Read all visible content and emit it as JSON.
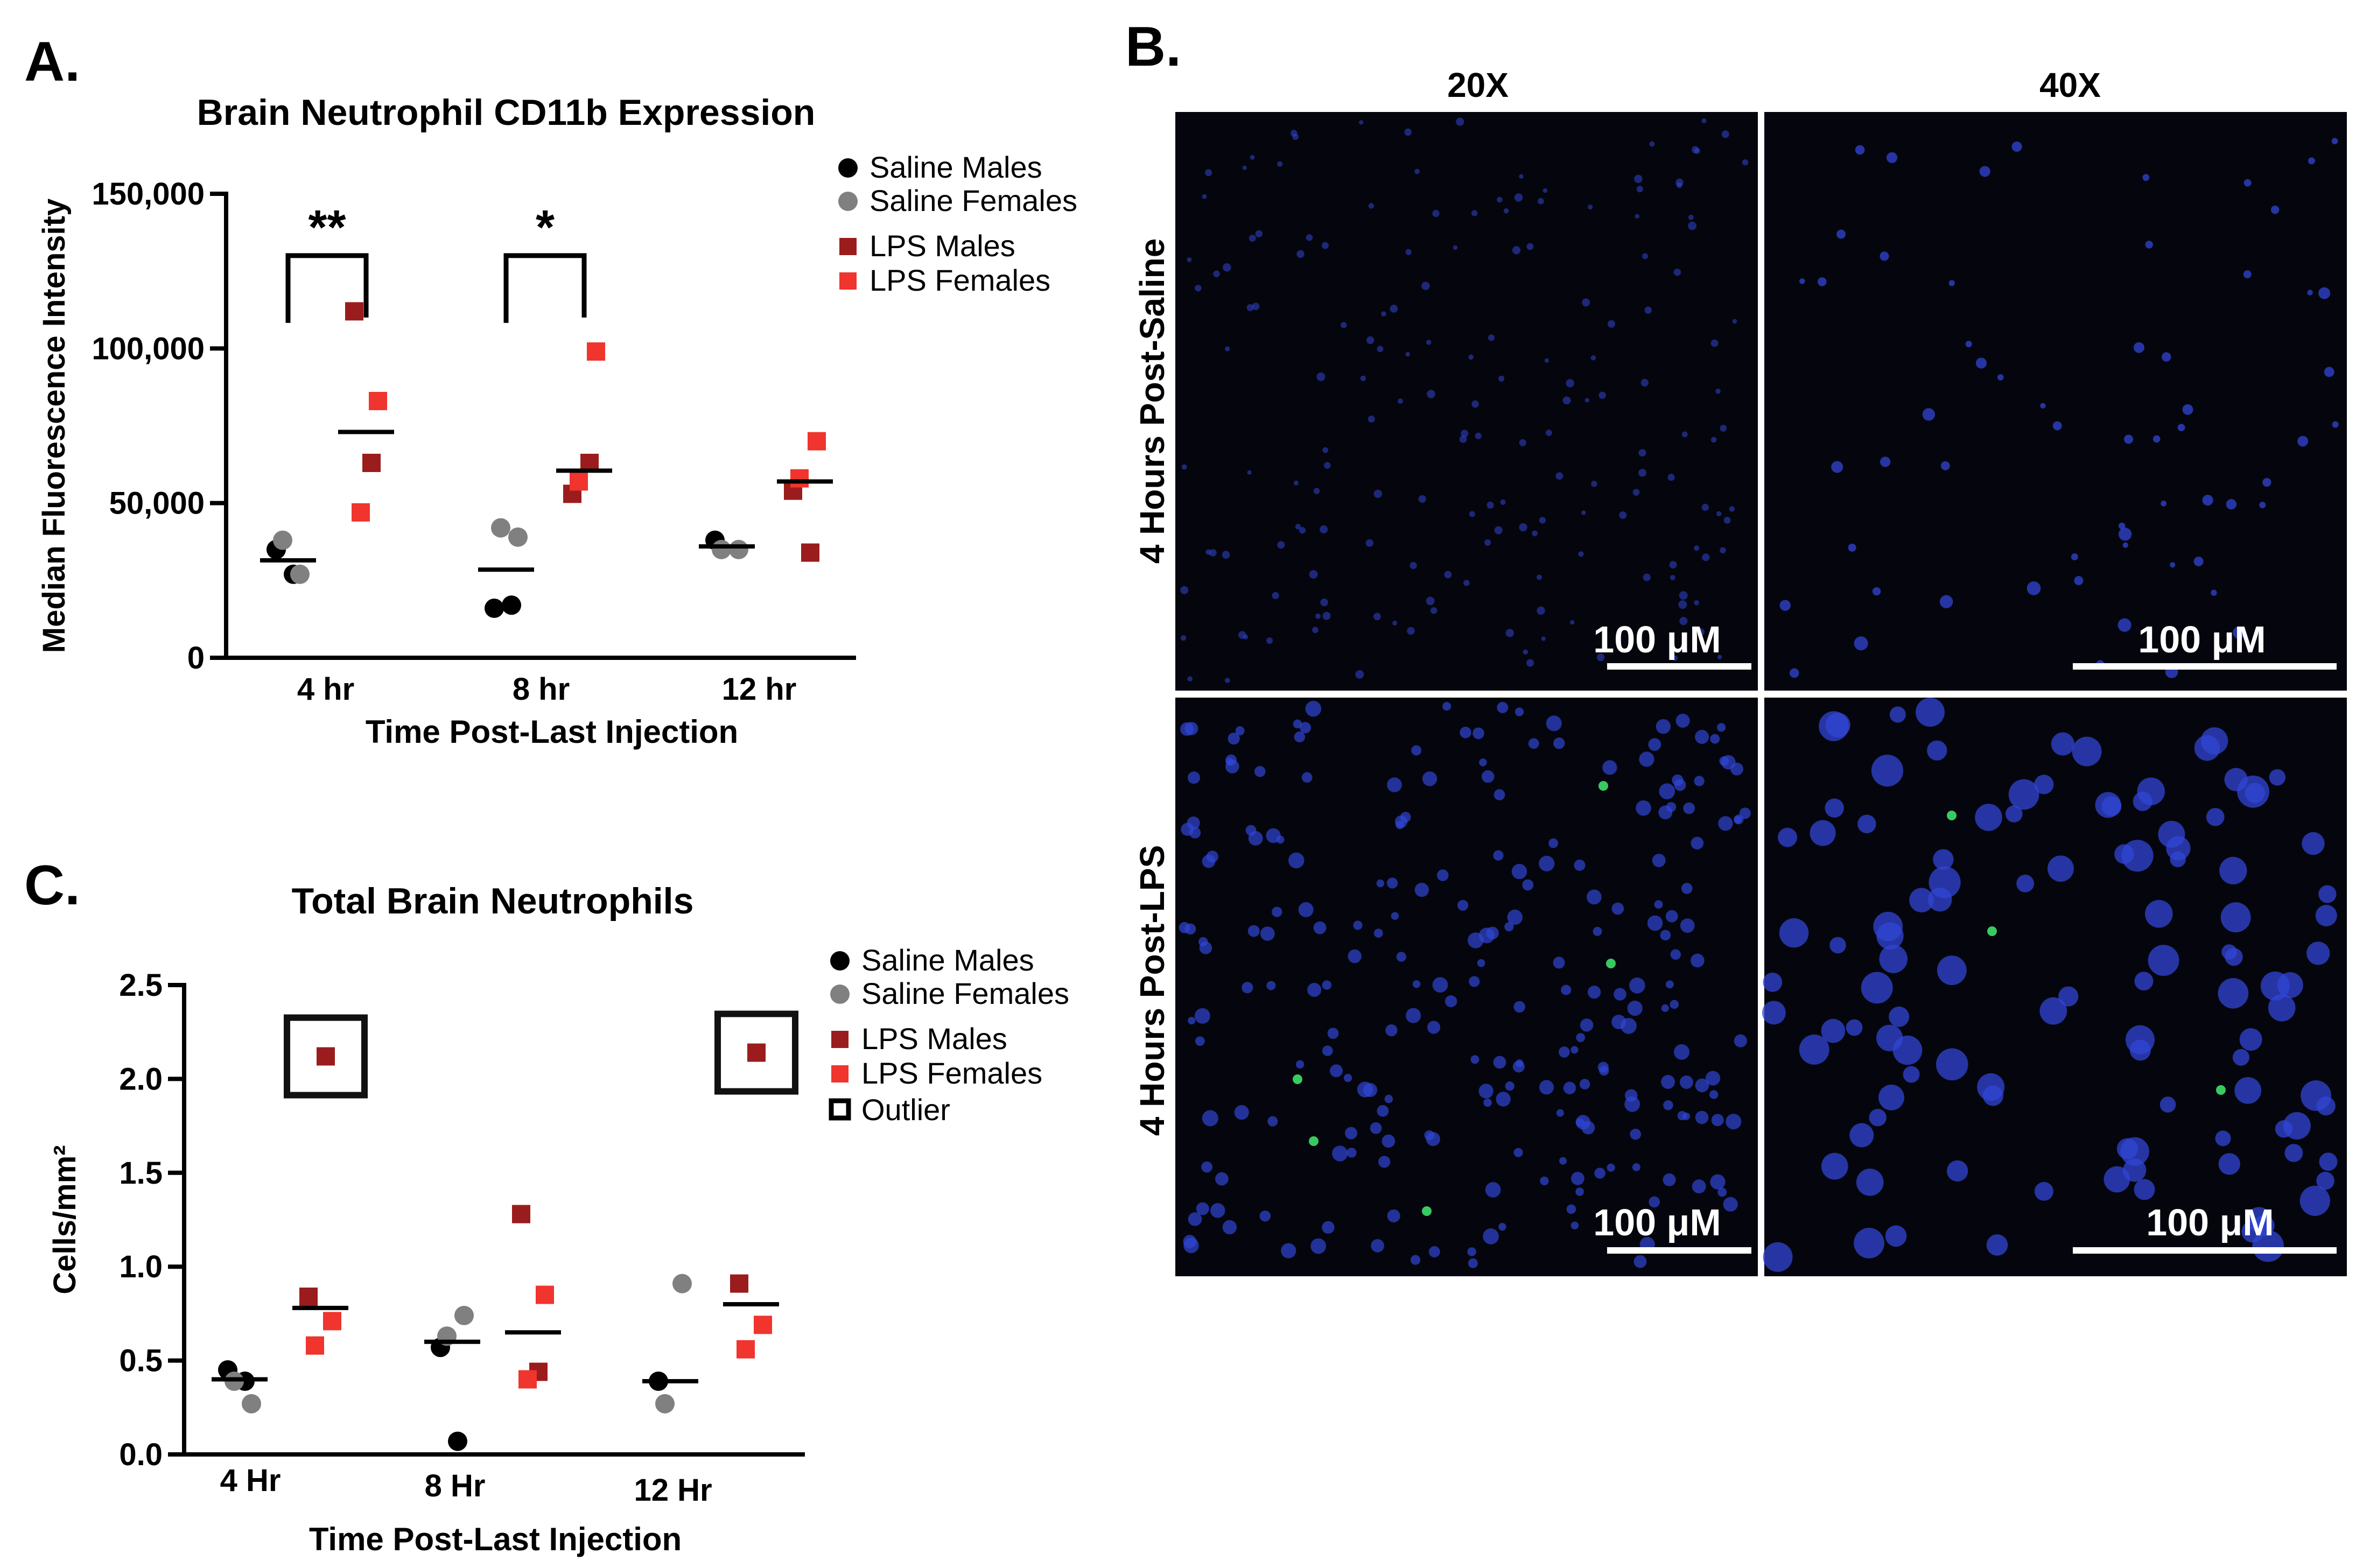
{
  "colors": {
    "saline_males": "#000000",
    "saline_females": "#808080",
    "lps_males": "#9b1c1c",
    "lps_females": "#f0342e",
    "micro_bg": "#05060d",
    "nuclei": "#3146d6",
    "gfp": "#3ee06a"
  },
  "legend": {
    "saline_males": "Saline Males",
    "saline_females": "Saline Females",
    "lps_males": "LPS Males",
    "lps_females": "LPS Females",
    "outlier": "Outlier"
  },
  "panel_a": {
    "label": "A.",
    "significance": [
      "**",
      "*"
    ]
  },
  "panel_b": {
    "label": "B.",
    "col_labels": [
      "20X",
      "40X"
    ],
    "row_labels": [
      "4 Hours Post-Saline",
      "4 Hours Post-LPS"
    ],
    "scale_bar": "100 μM"
  },
  "panel_c": {
    "label": "C."
  },
  "chart_data": [
    {
      "type": "scatter",
      "title": "Brain Neutrophil CD11b Expression",
      "xlabel": "Time Post-Last Injection",
      "ylabel": "Median Fluorescence Intensity",
      "categories": [
        "4 hr",
        "8 hr",
        "12 hr"
      ],
      "ylim": [
        0,
        150000
      ],
      "yticks": [
        0,
        50000,
        100000,
        150000
      ],
      "ytick_labels": [
        "0",
        "50,000",
        "100,000",
        "150,000"
      ],
      "series": [
        {
          "name": "Saline Males",
          "group": "saline",
          "points": [
            {
              "cat": 0,
              "y": 35000
            },
            {
              "cat": 0,
              "y": 27000
            },
            {
              "cat": 1,
              "y": 16000
            },
            {
              "cat": 1,
              "y": 17000
            },
            {
              "cat": 2,
              "y": 38000
            }
          ]
        },
        {
          "name": "Saline Females",
          "group": "saline",
          "points": [
            {
              "cat": 0,
              "y": 27000
            },
            {
              "cat": 0,
              "y": 38000
            },
            {
              "cat": 1,
              "y": 39000
            },
            {
              "cat": 1,
              "y": 42000
            },
            {
              "cat": 2,
              "y": 35000
            },
            {
              "cat": 2,
              "y": 35000
            }
          ]
        },
        {
          "name": "LPS Males",
          "group": "lps",
          "points": [
            {
              "cat": 0,
              "y": 112000
            },
            {
              "cat": 0,
              "y": 63000
            },
            {
              "cat": 1,
              "y": 53000
            },
            {
              "cat": 1,
              "y": 63000
            },
            {
              "cat": 2,
              "y": 54000
            },
            {
              "cat": 2,
              "y": 34000
            }
          ]
        },
        {
          "name": "LPS Females",
          "group": "lps",
          "points": [
            {
              "cat": 0,
              "y": 83000
            },
            {
              "cat": 0,
              "y": 47000
            },
            {
              "cat": 1,
              "y": 99000
            },
            {
              "cat": 1,
              "y": 57000
            },
            {
              "cat": 2,
              "y": 70000
            },
            {
              "cat": 2,
              "y": 58000
            }
          ]
        }
      ],
      "means": [
        {
          "cat": 0,
          "group": "saline",
          "y": 31500
        },
        {
          "cat": 0,
          "group": "lps",
          "y": 73000
        },
        {
          "cat": 1,
          "group": "saline",
          "y": 28500
        },
        {
          "cat": 1,
          "group": "lps",
          "y": 60500
        },
        {
          "cat": 2,
          "group": "saline",
          "y": 36000
        },
        {
          "cat": 2,
          "group": "lps",
          "y": 57000
        }
      ],
      "comparisons": [
        {
          "cat": 0,
          "y": 130000,
          "label": "**"
        },
        {
          "cat": 1,
          "y": 130000,
          "label": "*"
        }
      ]
    },
    {
      "type": "scatter",
      "title": "Total Brain Neutrophils",
      "xlabel": "Time Post-Last Injection",
      "ylabel": "Cells/mm²",
      "categories": [
        "4 Hr",
        "8 Hr",
        "12 Hr"
      ],
      "ylim": [
        0,
        2.5
      ],
      "yticks": [
        0,
        0.5,
        1.0,
        1.5,
        2.0,
        2.5
      ],
      "ytick_labels": [
        "0.0",
        "0.5",
        "1.0",
        "1.5",
        "2.0",
        "2.5"
      ],
      "series": [
        {
          "name": "Saline Males",
          "group": "saline",
          "points": [
            {
              "cat": 0,
              "y": 0.45
            },
            {
              "cat": 0,
              "y": 0.39
            },
            {
              "cat": 1,
              "y": 0.57
            },
            {
              "cat": 1,
              "y": 0.07
            },
            {
              "cat": 2,
              "y": 0.39
            }
          ]
        },
        {
          "name": "Saline Females",
          "group": "saline",
          "points": [
            {
              "cat": 0,
              "y": 0.27
            },
            {
              "cat": 0,
              "y": 0.39
            },
            {
              "cat": 1,
              "y": 0.74
            },
            {
              "cat": 1,
              "y": 0.63
            },
            {
              "cat": 2,
              "y": 0.91
            },
            {
              "cat": 2,
              "y": 0.27
            }
          ]
        },
        {
          "name": "LPS Males",
          "group": "lps",
          "points": [
            {
              "cat": 0,
              "y": 0.84
            },
            {
              "cat": 0,
              "y": 2.12,
              "outlier": true
            },
            {
              "cat": 1,
              "y": 1.28
            },
            {
              "cat": 1,
              "y": 0.44
            },
            {
              "cat": 2,
              "y": 0.91
            },
            {
              "cat": 2,
              "y": 2.14,
              "outlier": true
            }
          ]
        },
        {
          "name": "LPS Females",
          "group": "lps",
          "points": [
            {
              "cat": 0,
              "y": 0.71
            },
            {
              "cat": 0,
              "y": 0.58
            },
            {
              "cat": 1,
              "y": 0.85
            },
            {
              "cat": 1,
              "y": 0.4
            },
            {
              "cat": 2,
              "y": 0.69
            },
            {
              "cat": 2,
              "y": 0.56
            }
          ]
        }
      ],
      "means": [
        {
          "cat": 0,
          "group": "saline",
          "y": 0.4
        },
        {
          "cat": 0,
          "group": "lps",
          "y": 0.78
        },
        {
          "cat": 1,
          "group": "saline",
          "y": 0.6
        },
        {
          "cat": 1,
          "group": "lps",
          "y": 0.65
        },
        {
          "cat": 2,
          "group": "saline",
          "y": 0.39
        },
        {
          "cat": 2,
          "group": "lps",
          "y": 0.8
        }
      ]
    }
  ]
}
